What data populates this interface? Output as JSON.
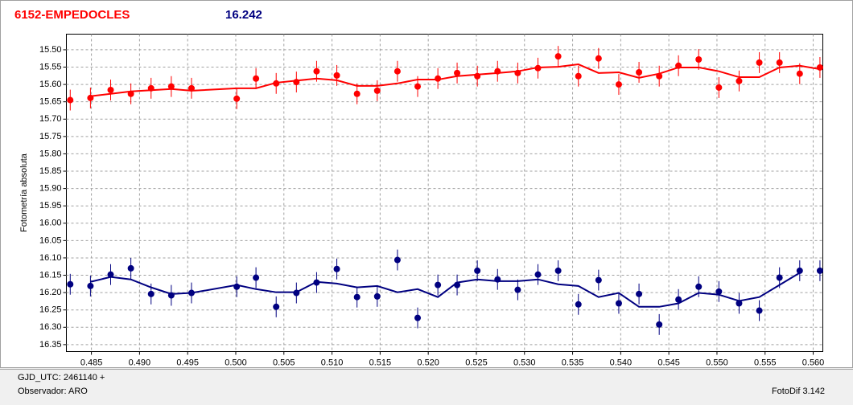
{
  "chart_data": {
    "type": "scatter",
    "title": "6152-EMPEDOCLES",
    "subtitle": "16.242",
    "ylabel": "Fotometría absoluta",
    "y_inverted": true,
    "grid": true,
    "xlim": [
      0.4824,
      0.561
    ],
    "ylim": [
      15.455,
      16.37
    ],
    "xticks": [
      0.485,
      {
        "value": 0.49,
        "label": "0.490"
      },
      0.495,
      {
        "value": 0.5,
        "label": "0.500"
      },
      0.505,
      {
        "value": 0.51,
        "label": "0.510"
      },
      0.515,
      {
        "value": 0.52,
        "label": "0.520"
      },
      0.525,
      {
        "value": 0.53,
        "label": "0.530"
      },
      0.535,
      {
        "value": 0.54,
        "label": "0.540"
      },
      0.545,
      {
        "value": 0.55,
        "label": "0.550"
      },
      0.555,
      {
        "value": 0.56,
        "label": "0.560"
      }
    ],
    "yticks": [
      {
        "value": 15.5,
        "label": "15.50"
      },
      15.55,
      {
        "value": 15.6,
        "label": "15.60"
      },
      15.65,
      {
        "value": 15.7,
        "label": "15.70"
      },
      15.75,
      {
        "value": 15.8,
        "label": "15.80"
      },
      15.85,
      {
        "value": 15.9,
        "label": "15.90"
      },
      15.95,
      {
        "value": 16.0,
        "label": "16.00"
      },
      16.05,
      {
        "value": 16.1,
        "label": "16.10"
      },
      16.15,
      {
        "value": 16.2,
        "label": "16.20"
      },
      16.25,
      {
        "value": 16.3,
        "label": "16.30"
      },
      16.35
    ],
    "series": [
      {
        "color": "#ff0000",
        "error": 0.03,
        "x": [
          0.4828,
          0.4849,
          0.487,
          0.4891,
          0.4912,
          0.4933,
          0.4954,
          0.5001,
          0.5021,
          0.5042,
          0.5063,
          0.5084,
          0.5105,
          0.5126,
          0.5147,
          0.5168,
          0.5189,
          0.521,
          0.523,
          0.5251,
          0.5272,
          0.5293,
          0.5314,
          0.5335,
          0.5356,
          0.5377,
          0.5398,
          0.5419,
          0.544,
          0.546,
          0.5481,
          0.5502,
          0.5523,
          0.5544,
          0.5565,
          0.5586,
          0.5607
        ],
        "values": [
          15.645,
          15.639,
          15.616,
          15.627,
          15.611,
          15.606,
          15.611,
          15.641,
          15.583,
          15.597,
          15.593,
          15.562,
          15.574,
          15.627,
          15.618,
          15.562,
          15.606,
          15.583,
          15.567,
          15.576,
          15.562,
          15.567,
          15.553,
          15.519,
          15.576,
          15.525,
          15.6,
          15.565,
          15.576,
          15.546,
          15.528,
          15.609,
          15.59,
          15.537,
          15.537,
          15.569,
          15.551
        ],
        "fit_x": [
          0.4849,
          0.4891,
          0.4933,
          0.4954,
          0.5001,
          0.5021,
          0.5042,
          0.5084,
          0.5105,
          0.5126,
          0.5147,
          0.5168,
          0.5189,
          0.521,
          0.523,
          0.5272,
          0.5293,
          0.5314,
          0.5335,
          0.5356,
          0.5377,
          0.5398,
          0.5419,
          0.544,
          0.546,
          0.5481,
          0.5502,
          0.5523,
          0.5544,
          0.5565,
          0.5586,
          0.5607
        ],
        "fit": [
          15.634,
          15.62,
          15.613,
          15.618,
          15.611,
          15.611,
          15.595,
          15.583,
          15.588,
          15.604,
          15.604,
          15.597,
          15.586,
          15.586,
          15.576,
          15.567,
          15.562,
          15.551,
          15.549,
          15.542,
          15.567,
          15.565,
          15.581,
          15.569,
          15.551,
          15.551,
          15.562,
          15.579,
          15.579,
          15.551,
          15.546,
          15.556
        ]
      },
      {
        "color": "#000080",
        "error": 0.03,
        "x": [
          0.4828,
          0.4849,
          0.487,
          0.4891,
          0.4912,
          0.4933,
          0.4954,
          0.5001,
          0.5021,
          0.5042,
          0.5063,
          0.5084,
          0.5105,
          0.5126,
          0.5147,
          0.5168,
          0.5189,
          0.521,
          0.523,
          0.5251,
          0.5272,
          0.5293,
          0.5314,
          0.5335,
          0.5356,
          0.5377,
          0.5398,
          0.5419,
          0.544,
          0.546,
          0.5481,
          0.5502,
          0.5523,
          0.5544,
          0.5565,
          0.5586,
          0.5607
        ],
        "values": [
          16.176,
          16.181,
          16.148,
          16.13,
          16.204,
          16.208,
          16.201,
          16.183,
          16.157,
          16.241,
          16.201,
          16.171,
          16.132,
          16.213,
          16.211,
          16.106,
          16.273,
          16.178,
          16.178,
          16.137,
          16.162,
          16.192,
          16.148,
          16.137,
          16.234,
          16.164,
          16.231,
          16.204,
          16.292,
          16.22,
          16.183,
          16.197,
          16.231,
          16.252,
          16.157,
          16.137,
          16.137
        ],
        "fit_x": [
          0.4849,
          0.487,
          0.4891,
          0.4912,
          0.4933,
          0.4954,
          0.5001,
          0.5021,
          0.5042,
          0.5063,
          0.5084,
          0.5105,
          0.5126,
          0.5147,
          0.5168,
          0.5189,
          0.521,
          0.523,
          0.5251,
          0.5272,
          0.5293,
          0.5314,
          0.5335,
          0.5356,
          0.5377,
          0.5398,
          0.5419,
          0.544,
          0.546,
          0.5481,
          0.5502,
          0.5523,
          0.5544,
          0.5565,
          0.5586
        ],
        "fit": [
          16.169,
          16.155,
          16.162,
          16.185,
          16.204,
          16.201,
          16.178,
          16.19,
          16.199,
          16.199,
          16.169,
          16.174,
          16.185,
          16.181,
          16.199,
          16.19,
          16.213,
          16.171,
          16.162,
          16.167,
          16.167,
          16.162,
          16.176,
          16.181,
          16.213,
          16.201,
          16.241,
          16.241,
          16.231,
          16.201,
          16.206,
          16.224,
          16.213,
          16.178,
          16.143
        ]
      }
    ]
  },
  "footer": {
    "date": "GJD_UTC: 2461140 +",
    "observer": "Observador: ARO",
    "software": "FotoDif 3.142"
  }
}
